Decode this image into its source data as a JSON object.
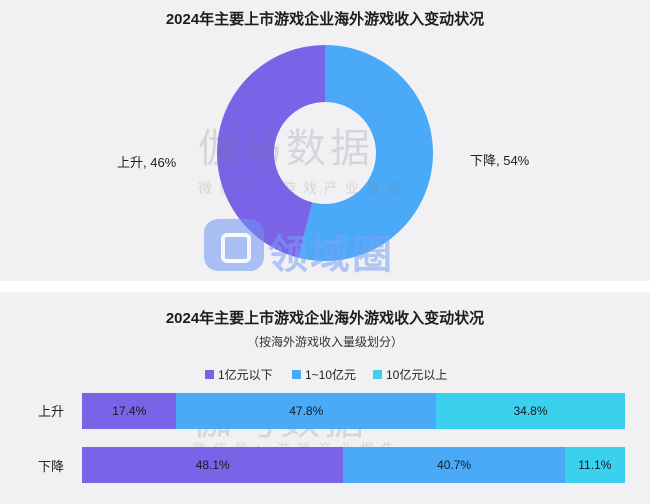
{
  "pie_chart": {
    "title": "2024年主要上市游戏企业海外游戏收入变动状况"
  },
  "bar_chart": {
    "title": "2024年主要上市游戏企业海外游戏收入变动状况",
    "subtitle": "（按海外游戏收入量级划分）"
  },
  "watermark": {
    "main": "伽马数据",
    "sub": "微信号：游戏产业报告",
    "logo_text": "领域圈"
  },
  "chart_data": [
    {
      "type": "pie",
      "title": "2024年主要上市游戏企业海外游戏收入变动状况",
      "labels": [
        "上升",
        "下降"
      ],
      "values": [
        46,
        54
      ],
      "unit": "%",
      "colors": [
        "#7a63e6",
        "#4aaaf7"
      ],
      "display_labels": [
        "上升, 46%",
        "下降, 54%"
      ]
    },
    {
      "type": "bar",
      "orientation": "horizontal",
      "stacked": true,
      "title": "2024年主要上市游戏企业海外游戏收入变动状况",
      "subtitle": "（按海外游戏收入量级划分）",
      "categories": [
        "上升",
        "下降"
      ],
      "series": [
        {
          "name": "1亿元以下",
          "color": "#7a63e6",
          "values": [
            17.4,
            48.1
          ],
          "labels": [
            "17.4%",
            "48.1%"
          ]
        },
        {
          "name": "1~10亿元",
          "color": "#4aaaf7",
          "values": [
            47.8,
            40.7
          ],
          "labels": [
            "47.8%",
            "40.7%"
          ]
        },
        {
          "name": "10亿元以上",
          "color": "#3ad0ee",
          "values": [
            34.8,
            11.1
          ],
          "labels": [
            "34.8%",
            "11.1%"
          ]
        }
      ],
      "unit": "%",
      "legend_position": "top"
    }
  ]
}
